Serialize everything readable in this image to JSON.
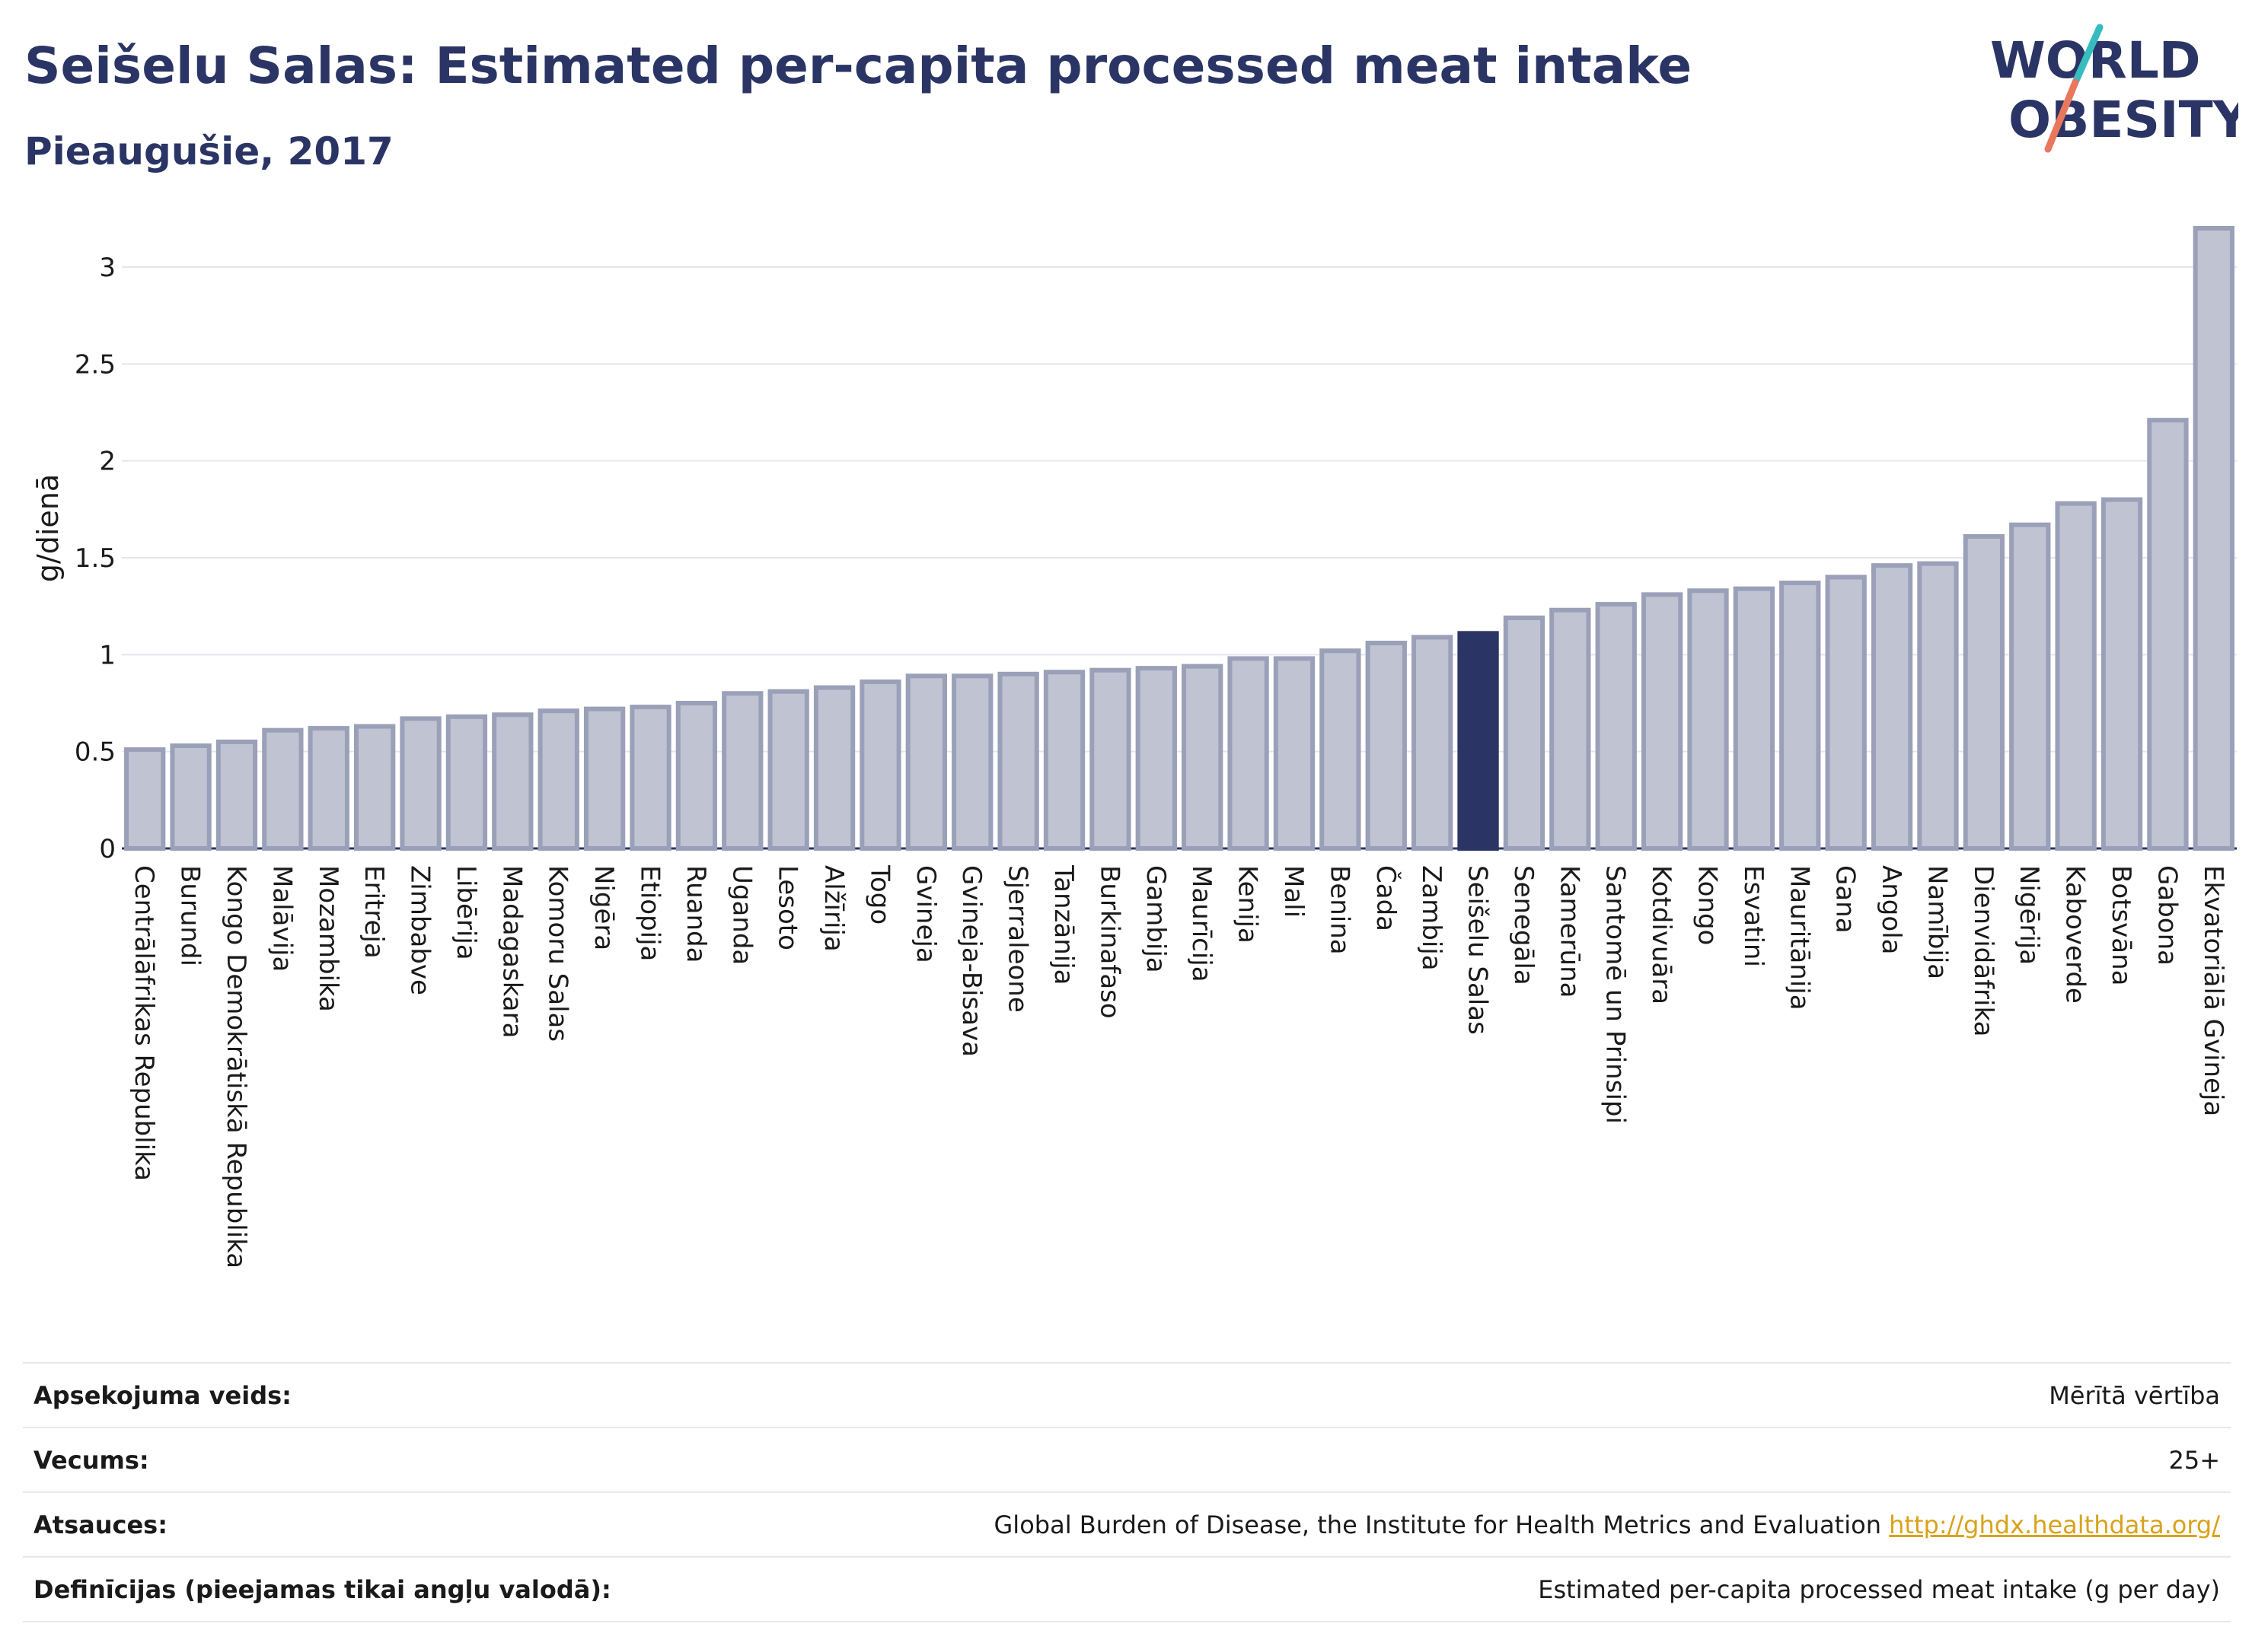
{
  "header": {
    "title": "Seišelu Salas: Estimated per-capita processed meat intake",
    "subtitle": "Pieaugušie, 2017"
  },
  "logo": {
    "line1": "WORLD",
    "line2": "OBESITY"
  },
  "colors": {
    "bar": "#bfc3d2",
    "bar_border": "#9aa0b8",
    "highlight": "#2b3565",
    "text": "#2b3565",
    "grid": "#e4e6ec",
    "link": "#d9a21b",
    "logo_teal": "#37bcc0",
    "logo_coral": "#e9775e"
  },
  "chart_data": {
    "type": "bar",
    "ylabel": "g/dienā",
    "ylim": [
      0,
      3.2
    ],
    "yticks": [
      "0",
      "0.5",
      "1",
      "1.5",
      "2",
      "2.5",
      "3"
    ],
    "ytick_values": [
      0,
      0.5,
      1,
      1.5,
      2,
      2.5,
      3
    ],
    "highlight": "Seišelu Salas",
    "grid": true,
    "categories": [
      "Centrālāfrikas Republika",
      "Burundi",
      "Kongo Demokrātiskā Republika",
      "Malāvija",
      "Mozambika",
      "Eritreja",
      "Zimbabve",
      "Libērija",
      "Madagaskara",
      "Komoru Salas",
      "Nigēra",
      "Etiopija",
      "Ruanda",
      "Uganda",
      "Lesoto",
      "Alžīrija",
      "Togo",
      "Gvineja",
      "Gvineja-Bisava",
      "Sjerraleone",
      "Tanzānija",
      "Burkinafaso",
      "Gambija",
      "Maurīcija",
      "Kenija",
      "Mali",
      "Benina",
      "Čada",
      "Zambija",
      "Seišelu Salas",
      "Senegāla",
      "Kamerūna",
      "Santomē un Prinsipi",
      "Kotdivuāra",
      "Kongo",
      "Esvatini",
      "Mauritānija",
      "Gana",
      "Angola",
      "Namībija",
      "Dienvidāfrika",
      "Nigērija",
      "Kaboverde",
      "Botsvāna",
      "Gabona",
      "Ekvatoriālā Gvineja"
    ],
    "values": [
      0.51,
      0.53,
      0.55,
      0.61,
      0.62,
      0.63,
      0.67,
      0.68,
      0.69,
      0.71,
      0.72,
      0.73,
      0.75,
      0.8,
      0.81,
      0.83,
      0.86,
      0.89,
      0.89,
      0.9,
      0.91,
      0.92,
      0.93,
      0.94,
      0.98,
      0.98,
      1.02,
      1.06,
      1.09,
      1.11,
      1.19,
      1.23,
      1.26,
      1.31,
      1.33,
      1.34,
      1.37,
      1.4,
      1.46,
      1.47,
      1.61,
      1.67,
      1.78,
      1.8,
      2.21,
      3.2
    ]
  },
  "footer": {
    "rows": [
      {
        "label": "Apsekojuma veids:",
        "value": "Mērītā vērtība"
      },
      {
        "label": "Vecums:",
        "value": "25+"
      },
      {
        "label": "Atsauces:",
        "value": "Global Burden of Disease, the Institute for Health Metrics and Evaluation",
        "link": "http://ghdx.healthdata.org/"
      },
      {
        "label": "Definīcijas (pieejamas tikai angļu valodā):",
        "value": "Estimated per-capita processed meat intake (g per day)"
      }
    ]
  }
}
